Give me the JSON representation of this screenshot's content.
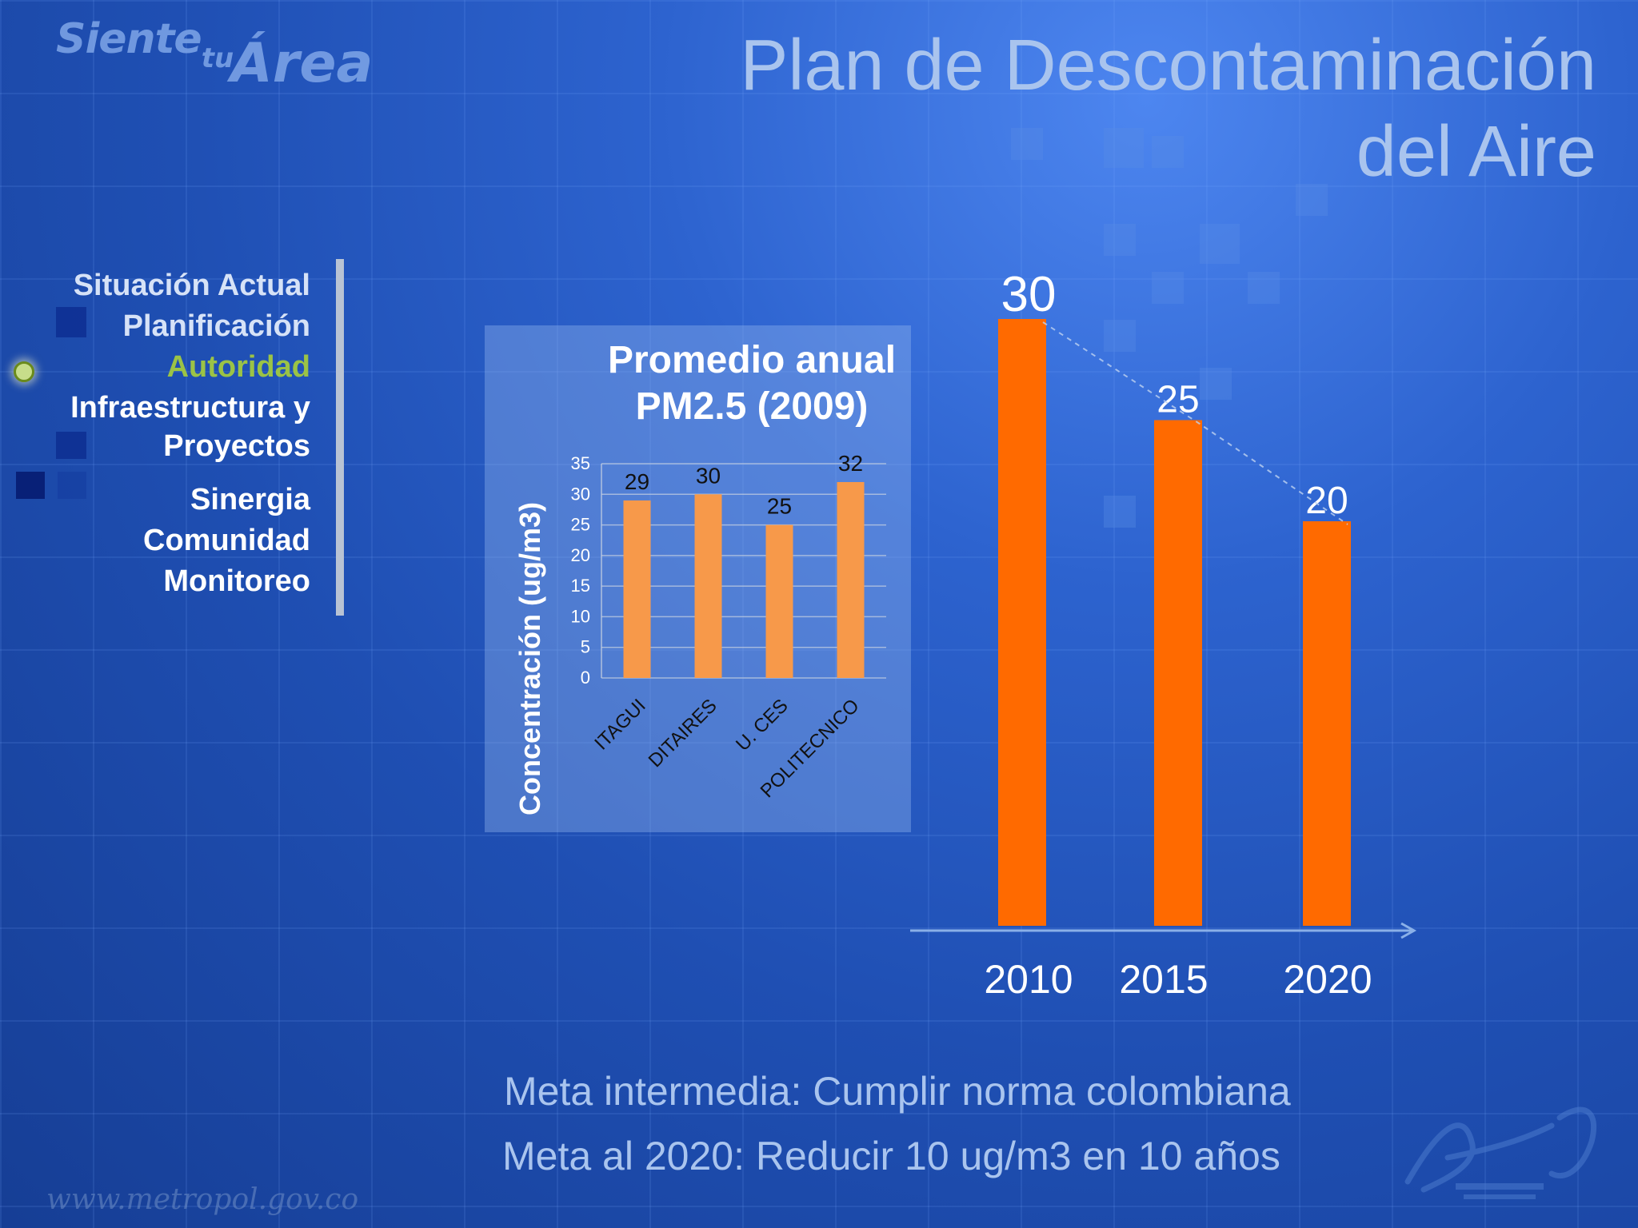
{
  "logo": {
    "siente": "Siente",
    "tu": "tu",
    "area": "Área"
  },
  "title": {
    "line1": "Plan de Descontaminación",
    "line2": "del Aire"
  },
  "menu": {
    "items": [
      {
        "label": "Situación Actual",
        "state": "dim"
      },
      {
        "label": "Planificación",
        "state": "dim"
      },
      {
        "label": "Autoridad",
        "state": "active"
      },
      {
        "label": "Infraestructura y",
        "state": "normal"
      },
      {
        "label": "Proyectos",
        "state": "normal"
      },
      {
        "label": "Sinergia",
        "state": "normal"
      },
      {
        "label": "Comunidad",
        "state": "normal"
      },
      {
        "label": "Monitoreo",
        "state": "normal"
      }
    ],
    "active_color": "#9bc346"
  },
  "footer": {
    "line1": "Meta intermedia: Cumplir norma colombiana",
    "line2": "Meta al 2020: Reducir 10 ug/m3 en 10 años",
    "url": "www.metropol.gov.co"
  },
  "chart_data": [
    {
      "type": "bar",
      "title": "Promedio anual PM2.5 (2009)",
      "title_lines": [
        "Promedio anual",
        "PM2.5 (2009)"
      ],
      "ylabel": "Concentración (ug/m3)",
      "xlabel": "",
      "categories": [
        "ITAGUI",
        "DITAIRES",
        "U. CES",
        "POLITECNICO"
      ],
      "values": [
        29,
        30,
        25,
        32
      ],
      "ylim": [
        0,
        35
      ],
      "yticks": [
        0,
        5,
        10,
        15,
        20,
        25,
        30,
        35
      ],
      "grid": true,
      "color": "#f7994a"
    },
    {
      "type": "bar",
      "title": "",
      "categories": [
        "2010",
        "2015",
        "2020"
      ],
      "values": [
        30,
        25,
        20
      ],
      "trend_line": "dashed",
      "color": "#ff6a00"
    }
  ]
}
